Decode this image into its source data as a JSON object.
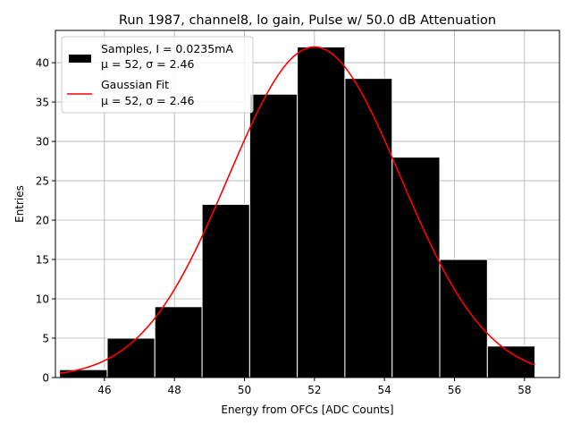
{
  "chart_data": {
    "type": "bar",
    "title": "Run 1987, channel8, lo gain, Pulse w/ 50.0 dB Attenuation",
    "xlabel": "Energy from OFCs [ADC Counts]",
    "ylabel": "Entries",
    "xlim": [
      44.6,
      59.0
    ],
    "ylim": [
      0,
      44.1
    ],
    "xticks": [
      46,
      48,
      50,
      52,
      54,
      56,
      58
    ],
    "xtick_labels": [
      "46",
      "48",
      "50",
      "52",
      "54",
      "56",
      "58"
    ],
    "yticks": [
      0,
      5,
      10,
      15,
      20,
      25,
      30,
      35,
      40
    ],
    "ytick_labels": [
      "0",
      "5",
      "10",
      "15",
      "20",
      "25",
      "30",
      "35",
      "40"
    ],
    "grid": true,
    "bin_edges": [
      44.72,
      46.08,
      47.44,
      48.79,
      50.15,
      51.51,
      52.87,
      54.22,
      55.58,
      56.94,
      58.3
    ],
    "values": [
      1,
      5,
      9,
      22,
      36,
      42,
      38,
      28,
      15,
      4
    ],
    "bar_color": "#000000",
    "bar_edge_color": "#ffffff",
    "series": [
      {
        "name": "Samples, I = 0.0235mA",
        "sub": "μ = 52, σ = 2.46",
        "kind": "histogram",
        "color": "#000000"
      },
      {
        "name": "Gaussian Fit",
        "sub": "μ = 52, σ = 2.46",
        "kind": "line",
        "color": "#ff0000",
        "mu": 52.0,
        "sigma": 2.46,
        "amplitude": 42.0,
        "x_range": [
          44.72,
          58.3
        ]
      }
    ],
    "legend_position": "upper-left"
  }
}
